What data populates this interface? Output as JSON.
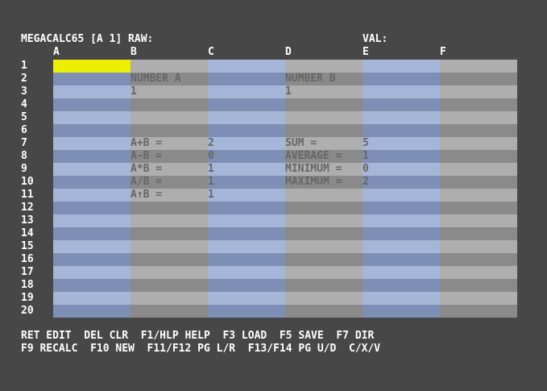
{
  "header": {
    "title": "MEGACALC65 [A 1] RAW:",
    "val_label": "VAL:"
  },
  "columns": [
    "A",
    "B",
    "C",
    "D",
    "E",
    "F"
  ],
  "rows": [
    "1",
    "2",
    "3",
    "4",
    "5",
    "6",
    "7",
    "8",
    "9",
    "10",
    "11",
    "12",
    "13",
    "14",
    "15",
    "16",
    "17",
    "18",
    "19",
    "20"
  ],
  "cursor": {
    "col": 0,
    "row": 0
  },
  "cells": [
    {
      "col": 1,
      "row": 1,
      "text": "NUMBER A"
    },
    {
      "col": 3,
      "row": 1,
      "text": "NUMBER B"
    },
    {
      "col": 1,
      "row": 2,
      "text": "1"
    },
    {
      "col": 3,
      "row": 2,
      "text": "1"
    },
    {
      "col": 1,
      "row": 6,
      "text": "A+B ="
    },
    {
      "col": 2,
      "row": 6,
      "text": "2"
    },
    {
      "col": 3,
      "row": 6,
      "text": "SUM ="
    },
    {
      "col": 4,
      "row": 6,
      "text": "5"
    },
    {
      "col": 1,
      "row": 7,
      "text": "A-B ="
    },
    {
      "col": 2,
      "row": 7,
      "text": "0"
    },
    {
      "col": 3,
      "row": 7,
      "text": "AVERAGE ="
    },
    {
      "col": 4,
      "row": 7,
      "text": "1"
    },
    {
      "col": 1,
      "row": 8,
      "text": "A*B ="
    },
    {
      "col": 2,
      "row": 8,
      "text": "1"
    },
    {
      "col": 3,
      "row": 8,
      "text": "MINIMUM ="
    },
    {
      "col": 4,
      "row": 8,
      "text": "0"
    },
    {
      "col": 1,
      "row": 9,
      "text": "A/B ="
    },
    {
      "col": 2,
      "row": 9,
      "text": "1"
    },
    {
      "col": 3,
      "row": 9,
      "text": "MAXIMUM ="
    },
    {
      "col": 4,
      "row": 9,
      "text": "2"
    },
    {
      "col": 1,
      "row": 10,
      "text": "A↑B ="
    },
    {
      "col": 2,
      "row": 10,
      "text": "1"
    }
  ],
  "footer": {
    "line1": "RET EDIT  DEL CLR  F1/HLP HELP  F3 LOAD  F5 SAVE  F7 DIR",
    "line2": "F9 RECALC  F10 NEW  F11/F12 PG L/R  F13/F14 PG U/D  C/X/V"
  },
  "colors": {
    "background": "#474747",
    "blue_dark": "#7d8fb4",
    "blue_light": "#a6b6d8",
    "gray_dark": "#8a8a8a",
    "gray_light": "#aeaeae",
    "cursor": "#eeee00",
    "cell_text": "#666666",
    "chrome_text": "#ffffff"
  }
}
